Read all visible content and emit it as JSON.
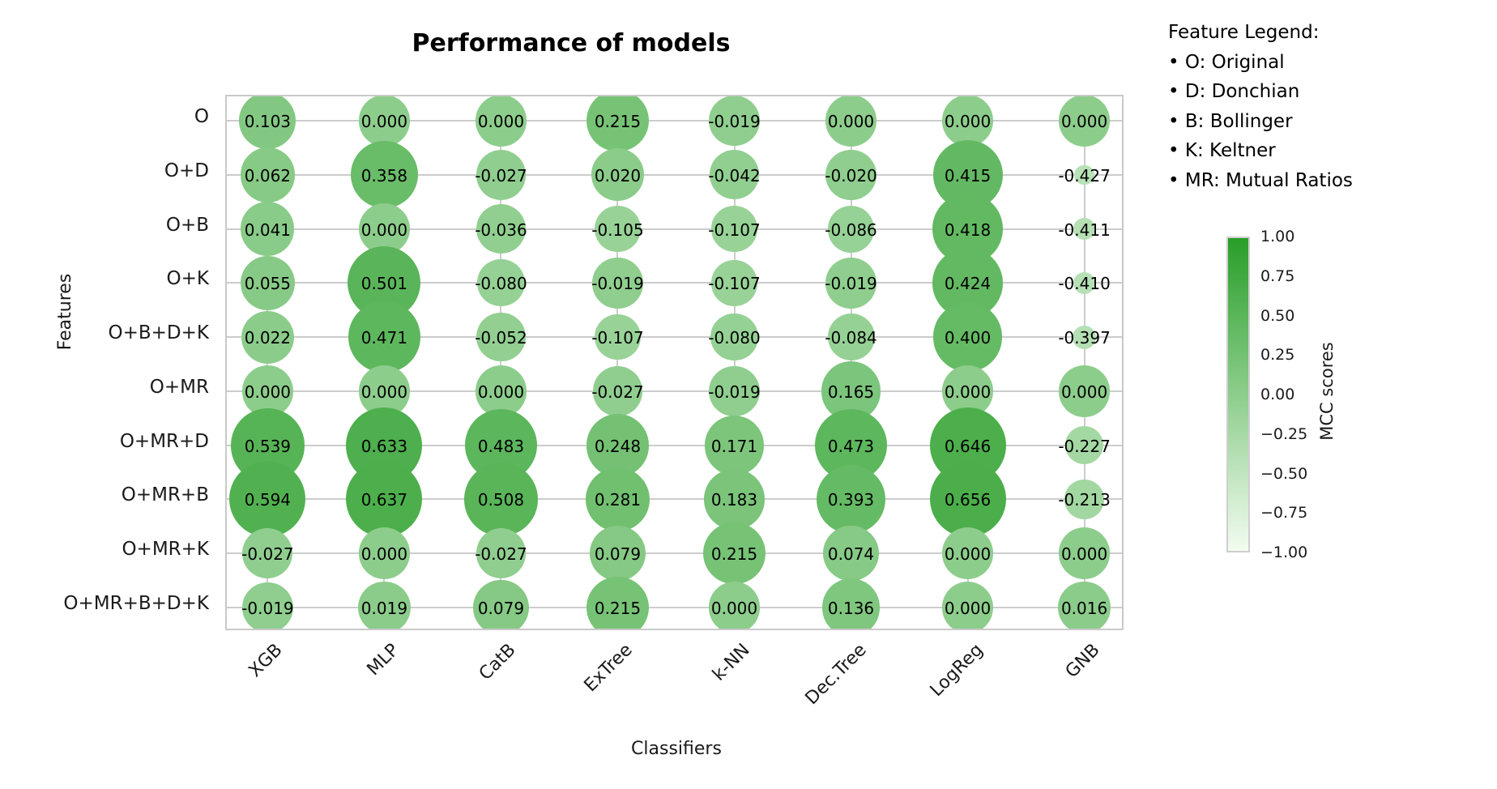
{
  "chart_data": {
    "type": "scatter",
    "title": "Performance of models",
    "xlabel": "Classifiers",
    "ylabel": "Features",
    "x_categories": [
      "XGB",
      "MLP",
      "CatB",
      "ExTree",
      "k-NN",
      "Dec.Tree",
      "LogReg",
      "GNB"
    ],
    "y_categories": [
      "O",
      "O+D",
      "O+B",
      "O+K",
      "O+B+D+K",
      "O+MR",
      "O+MR+D",
      "O+MR+B",
      "O+MR+K",
      "O+MR+B+D+K"
    ],
    "values": [
      [
        "0.103",
        "0.000",
        "0.000",
        "0.215",
        "-0.019",
        "0.000",
        "0.000",
        "0.000"
      ],
      [
        "0.062",
        "0.358",
        "-0.027",
        "0.020",
        "-0.042",
        "-0.020",
        "0.415",
        "-0.427"
      ],
      [
        "0.041",
        "0.000",
        "-0.036",
        "-0.105",
        "-0.107",
        "-0.086",
        "0.418",
        "-0.411"
      ],
      [
        "0.055",
        "0.501",
        "-0.080",
        "-0.019",
        "-0.107",
        "-0.019",
        "0.424",
        "-0.410"
      ],
      [
        "0.022",
        "0.471",
        "-0.052",
        "-0.107",
        "-0.080",
        "-0.084",
        "0.400",
        "-0.397"
      ],
      [
        "0.000",
        "0.000",
        "0.000",
        "-0.027",
        "-0.019",
        "0.165",
        "0.000",
        "0.000"
      ],
      [
        "0.539",
        "0.633",
        "0.483",
        "0.248",
        "0.171",
        "0.473",
        "0.646",
        "-0.227"
      ],
      [
        "0.594",
        "0.637",
        "0.508",
        "0.281",
        "0.183",
        "0.393",
        "0.656",
        "-0.213"
      ],
      [
        "-0.027",
        "0.000",
        "-0.027",
        "0.079",
        "0.215",
        "0.074",
        "0.000",
        "0.000"
      ],
      [
        "-0.019",
        "0.019",
        "0.079",
        "0.215",
        "0.000",
        "0.136",
        "0.000",
        "0.016"
      ]
    ],
    "grid": true,
    "bubble_color_low": "#f2fcf0",
    "bubble_color_high": "#289e28",
    "colorbar": {
      "label": "MCC scores",
      "min": -1.0,
      "max": 1.0,
      "ticks": [
        "1.00",
        "0.75",
        "0.50",
        "0.25",
        "0.00",
        "−0.25",
        "−0.50",
        "−0.75",
        "−1.00"
      ]
    },
    "feature_legend": {
      "title": "Feature Legend:",
      "items": [
        "• O: Original",
        "• D: Donchian",
        "• B: Bollinger",
        "• K: Keltner",
        "• MR: Mutual Ratios"
      ]
    }
  }
}
